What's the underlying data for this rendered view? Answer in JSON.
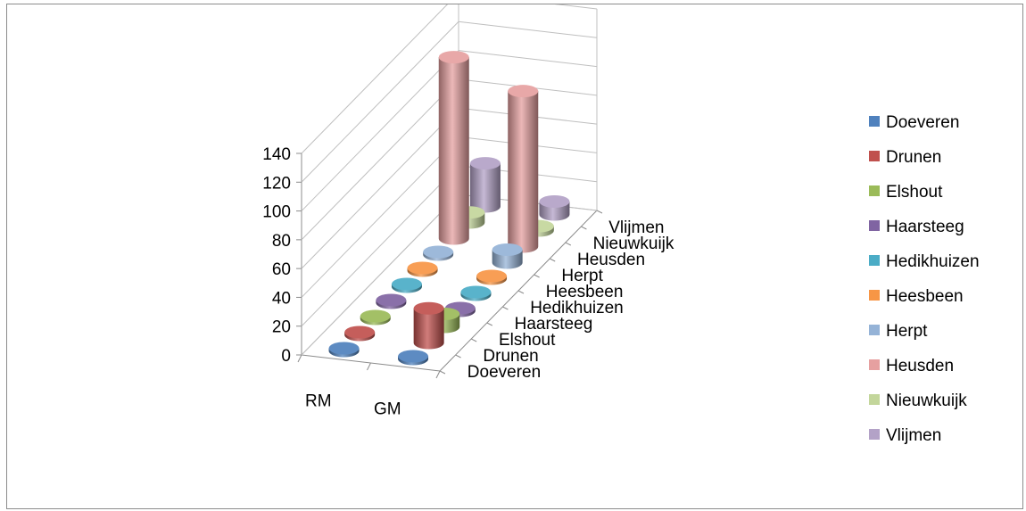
{
  "chart_data": {
    "type": "bar",
    "subtype": "3d-cylinder",
    "categories": [
      "RM",
      "GM"
    ],
    "ylim": [
      0,
      140
    ],
    "yticks": [
      0,
      20,
      40,
      60,
      80,
      100,
      120,
      140
    ],
    "grid": true,
    "legend": "right",
    "series": [
      {
        "name": "Doeveren",
        "values": [
          1,
          1
        ],
        "color": "#4f81bd"
      },
      {
        "name": "Drunen",
        "values": [
          1,
          24
        ],
        "color": "#c0504d"
      },
      {
        "name": "Elshout",
        "values": [
          1,
          9
        ],
        "color": "#9bbb59"
      },
      {
        "name": "Haarsteeg",
        "values": [
          1,
          1
        ],
        "color": "#8064a2"
      },
      {
        "name": "Hedikhuizen",
        "values": [
          1,
          1
        ],
        "color": "#4bacc6"
      },
      {
        "name": "Heesbeen",
        "values": [
          1,
          1
        ],
        "color": "#f79646"
      },
      {
        "name": "Herpt",
        "values": [
          1,
          9
        ],
        "color": "#95b3d7"
      },
      {
        "name": "Heusden",
        "values": [
          126,
          108
        ],
        "color": "#e6a0a0"
      },
      {
        "name": "Nieuwkuijk",
        "values": [
          7,
          3
        ],
        "color": "#c3d69b"
      },
      {
        "name": "Vlijmen",
        "values": [
          30,
          9
        ],
        "color": "#b3a2c7"
      }
    ]
  }
}
